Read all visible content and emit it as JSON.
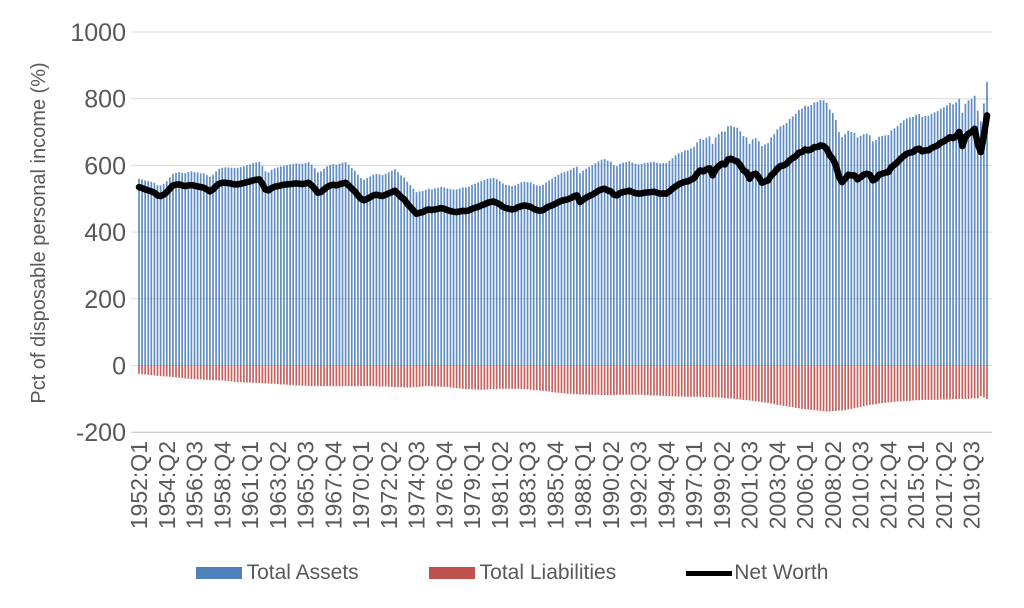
{
  "y_axis": {
    "label": "Pct of disposable personal income (%)",
    "ticks": [
      1000,
      800,
      600,
      400,
      200,
      0,
      -200
    ],
    "min": -200,
    "max": 1000,
    "text_color": "#595959",
    "grid_color": "#D9D9D9",
    "axis_color": "#BFBFBF"
  },
  "x_axis": {
    "tick_every": 9,
    "labels": [
      "1952:Q1",
      "1954:Q2",
      "1956:Q3",
      "1958:Q4",
      "1961:Q1",
      "1963:Q2",
      "1965:Q3",
      "1967:Q4",
      "1970:Q1",
      "1972:Q2",
      "1974:Q3",
      "1976:Q4",
      "1979:Q1",
      "1981:Q2",
      "1983:Q3",
      "1985:Q4",
      "1988:Q1",
      "1990:Q2",
      "1992:Q3",
      "1994:Q4",
      "1997:Q1",
      "1999:Q2",
      "2001:Q3",
      "2003:Q4",
      "2006:Q1",
      "2008:Q2",
      "2010:Q3",
      "2012:Q4",
      "2015:Q1",
      "2017:Q2",
      "2019:Q3"
    ]
  },
  "legend": [
    {
      "label": "Total Assets",
      "color": "#4F81BD",
      "type": "bar"
    },
    {
      "label": "Total Liabilities",
      "color": "#C0504D",
      "type": "bar"
    },
    {
      "label": "Net Worth",
      "color": "#000000",
      "type": "line"
    }
  ],
  "chart_data": {
    "type": "bar",
    "subtype": "bar+line combo, quarterly",
    "x_start": "1952:Q1",
    "x_end": "2020:Q4",
    "frequency": "quarterly",
    "ylabel": "Pct of disposable personal income (%)",
    "ylim": [
      -200,
      1000
    ],
    "grid": true,
    "legend_position": "bottom",
    "series": [
      {
        "name": "Total Assets",
        "type": "bar",
        "color": "#4F81BD",
        "values": [
          560,
          558,
          555,
          553,
          551,
          548,
          541,
          540,
          545,
          553,
          564,
          575,
          578,
          580,
          578,
          577,
          580,
          582,
          580,
          579,
          577,
          576,
          571,
          566,
          572,
          582,
          590,
          593,
          594,
          594,
          593,
          592,
          593,
          595,
          598,
          601,
          603,
          607,
          609,
          611,
          598,
          582,
          579,
          587,
          591,
          594,
          597,
          599,
          601,
          603,
          604,
          606,
          605,
          605,
          607,
          610,
          602,
          592,
          580,
          582,
          590,
          597,
          602,
          604,
          602,
          605,
          608,
          610,
          602,
          592,
          584,
          572,
          562,
          557,
          562,
          567,
          572,
          574,
          573,
          571,
          575,
          580,
          584,
          589,
          580,
          570,
          564,
          551,
          541,
          530,
          520,
          522,
          523,
          527,
          530,
          528,
          531,
          533,
          536,
          534,
          531,
          529,
          528,
          528,
          531,
          534,
          534,
          536,
          542,
          545,
          549,
          553,
          556,
          560,
          561,
          563,
          559,
          553,
          546,
          542,
          540,
          538,
          540,
          545,
          549,
          551,
          550,
          549,
          544,
          540,
          539,
          542,
          549,
          555,
          560,
          566,
          572,
          577,
          580,
          583,
          587,
          593,
          596,
          577,
          584,
          590,
          596,
          600,
          606,
          612,
          617,
          619,
          614,
          611,
          601,
          598,
          605,
          608,
          610,
          612,
          608,
          605,
          603,
          604,
          607,
          608,
          610,
          611,
          608,
          606,
          607,
          607,
          614,
          622,
          630,
          636,
          640,
          645,
          646,
          651,
          656,
          669,
          679,
          677,
          683,
          687,
          665,
          684,
          694,
          702,
          701,
          717,
          719,
          715,
          713,
          702,
          688,
          684,
          665,
          678,
          682,
          673,
          658,
          663,
          667,
          684,
          694,
          708,
          717,
          721,
          727,
          739,
          747,
          755,
          766,
          770,
          779,
          777,
          781,
          789,
          790,
          796,
          795,
          788,
          768,
          757,
          736,
          700,
          685,
          694,
          704,
          700,
          698,
          684,
          689,
          694,
          695,
          690,
          672,
          676,
          686,
          688,
          690,
          691,
          705,
          711,
          718,
          728,
          735,
          741,
          744,
          745,
          752,
          754,
          745,
          748,
          748,
          755,
          759,
          763,
          770,
          774,
          780,
          787,
          783,
          789,
          800,
          758,
          785,
          795,
          799,
          809,
          764,
          732,
          786,
          850
        ]
      },
      {
        "name": "Total Liabilities",
        "type": "bar",
        "color": "#C0504D",
        "values": [
          -25,
          -26,
          -27,
          -28,
          -29,
          -30,
          -31,
          -32,
          -33,
          -33,
          -34,
          -35,
          -36,
          -37,
          -38,
          -39,
          -40,
          -41,
          -41,
          -42,
          -42,
          -43,
          -43,
          -44,
          -44,
          -44,
          -45,
          -45,
          -46,
          -47,
          -48,
          -49,
          -50,
          -50,
          -51,
          -51,
          -51,
          -52,
          -52,
          -53,
          -53,
          -54,
          -54,
          -55,
          -55,
          -56,
          -57,
          -57,
          -58,
          -59,
          -59,
          -60,
          -60,
          -61,
          -61,
          -62,
          -62,
          -62,
          -62,
          -62,
          -62,
          -62,
          -62,
          -62,
          -62,
          -62,
          -62,
          -62,
          -62,
          -62,
          -62,
          -62,
          -62,
          -62,
          -62,
          -62,
          -62,
          -62,
          -63,
          -63,
          -63,
          -64,
          -64,
          -65,
          -65,
          -65,
          -66,
          -66,
          -66,
          -65,
          -65,
          -64,
          -63,
          -62,
          -62,
          -62,
          -63,
          -63,
          -64,
          -64,
          -65,
          -66,
          -67,
          -68,
          -69,
          -70,
          -71,
          -71,
          -72,
          -72,
          -73,
          -73,
          -73,
          -72,
          -71,
          -71,
          -71,
          -70,
          -70,
          -70,
          -70,
          -70,
          -70,
          -70,
          -71,
          -71,
          -72,
          -73,
          -74,
          -74,
          -75,
          -76,
          -77,
          -78,
          -80,
          -81,
          -82,
          -83,
          -84,
          -85,
          -85,
          -86,
          -86,
          -87,
          -87,
          -87,
          -88,
          -88,
          -88,
          -88,
          -89,
          -89,
          -89,
          -89,
          -89,
          -88,
          -88,
          -88,
          -88,
          -88,
          -88,
          -88,
          -88,
          -88,
          -89,
          -89,
          -90,
          -90,
          -90,
          -91,
          -91,
          -92,
          -92,
          -92,
          -93,
          -93,
          -93,
          -94,
          -94,
          -94,
          -94,
          -94,
          -94,
          -95,
          -95,
          -95,
          -95,
          -96,
          -96,
          -97,
          -98,
          -99,
          -99,
          -100,
          -101,
          -102,
          -103,
          -104,
          -105,
          -106,
          -107,
          -108,
          -110,
          -111,
          -112,
          -114,
          -116,
          -118,
          -119,
          -121,
          -122,
          -124,
          -125,
          -127,
          -128,
          -130,
          -131,
          -132,
          -133,
          -134,
          -135,
          -136,
          -137,
          -138,
          -138,
          -137,
          -136,
          -135,
          -135,
          -134,
          -132,
          -130,
          -128,
          -126,
          -124,
          -122,
          -120,
          -118,
          -117,
          -116,
          -114,
          -113,
          -112,
          -111,
          -110,
          -109,
          -108,
          -108,
          -107,
          -106,
          -106,
          -105,
          -104,
          -104,
          -103,
          -103,
          -103,
          -103,
          -103,
          -103,
          -102,
          -102,
          -102,
          -102,
          -101,
          -101,
          -100,
          -100,
          -100,
          -100,
          -99,
          -99,
          -99,
          -92,
          -96,
          -100
        ]
      },
      {
        "name": "Net Worth",
        "type": "line",
        "color": "#000000",
        "values": [
          535,
          532,
          528,
          525,
          522,
          518,
          510,
          508,
          512,
          520,
          530,
          540,
          542,
          543,
          540,
          538,
          540,
          541,
          539,
          537,
          535,
          533,
          528,
          522,
          528,
          538,
          545,
          548,
          548,
          547,
          545,
          543,
          543,
          545,
          547,
          550,
          552,
          555,
          557,
          558,
          545,
          528,
          525,
          532,
          536,
          538,
          540,
          542,
          543,
          544,
          545,
          546,
          545,
          544,
          546,
          548,
          540,
          530,
          518,
          520,
          528,
          535,
          540,
          542,
          540,
          543,
          546,
          548,
          540,
          530,
          522,
          510,
          500,
          495,
          500,
          505,
          510,
          512,
          510,
          508,
          512,
          516,
          520,
          524,
          515,
          505,
          498,
          485,
          475,
          465,
          455,
          458,
          460,
          465,
          468,
          466,
          468,
          470,
          472,
          470,
          466,
          463,
          461,
          460,
          462,
          464,
          463,
          465,
          470,
          473,
          476,
          480,
          483,
          488,
          490,
          492,
          488,
          483,
          476,
          472,
          470,
          468,
          470,
          475,
          478,
          480,
          478,
          476,
          470,
          466,
          464,
          466,
          472,
          477,
          480,
          485,
          490,
          494,
          496,
          498,
          502,
          507,
          510,
          490,
          497,
          503,
          508,
          512,
          518,
          524,
          528,
          530,
          525,
          522,
          512,
          510,
          517,
          520,
          522,
          524,
          520,
          517,
          515,
          516,
          518,
          519,
          520,
          521,
          518,
          515,
          516,
          515,
          522,
          530,
          537,
          543,
          547,
          551,
          552,
          557,
          562,
          575,
          585,
          582,
          588,
          592,
          570,
          588,
          598,
          605,
          603,
          618,
          620,
          615,
          612,
          600,
          585,
          580,
          560,
          572,
          575,
          565,
          548,
          552,
          555,
          570,
          578,
          590,
          598,
          600,
          605,
          615,
          622,
          628,
          638,
          640,
          648,
          645,
          648,
          655,
          655,
          660,
          658,
          650,
          630,
          620,
          600,
          565,
          550,
          560,
          572,
          570,
          570,
          558,
          565,
          572,
          575,
          572,
          555,
          560,
          572,
          575,
          578,
          580,
          595,
          602,
          610,
          620,
          628,
          635,
          638,
          640,
          648,
          650,
          642,
          645,
          645,
          652,
          656,
          660,
          668,
          672,
          678,
          685,
          682,
          688,
          700,
          658,
          685,
          695,
          700,
          710,
          665,
          640,
          690,
          750
        ]
      }
    ]
  }
}
